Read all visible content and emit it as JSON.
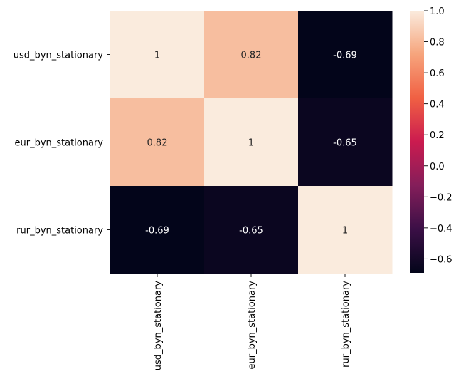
{
  "chart_data": {
    "type": "heatmap",
    "title": "",
    "xlabel": "",
    "ylabel": "",
    "x_categories": [
      "usd_byn_stationary",
      "eur_byn_stationary",
      "rur_byn_stationary"
    ],
    "y_categories": [
      "usd_byn_stationary",
      "eur_byn_stationary",
      "rur_byn_stationary"
    ],
    "values": [
      [
        1,
        0.82,
        -0.69
      ],
      [
        0.82,
        1,
        -0.65
      ],
      [
        -0.69,
        -0.65,
        1
      ]
    ],
    "cell_labels": [
      [
        "1",
        "0.82",
        "-0.69"
      ],
      [
        "0.82",
        "1",
        "-0.65"
      ],
      [
        "-0.69",
        "-0.65",
        "1"
      ]
    ],
    "colorbar": {
      "vmin": -0.69,
      "vmax": 1.0,
      "ticks": [
        1.0,
        0.8,
        0.6,
        0.4,
        0.2,
        0.0,
        -0.2,
        -0.4,
        -0.6
      ],
      "tick_labels": [
        "1.0",
        "0.8",
        "0.6",
        "0.4",
        "0.2",
        "0.0",
        "−0.2",
        "−0.4",
        "−0.6"
      ],
      "colormap": "rocket",
      "colormap_stops": [
        "#03051a",
        "#3b0f46",
        "#841e5a",
        "#cb1b4f",
        "#f06043",
        "#f6a47c",
        "#faebdd"
      ]
    },
    "colors": {
      "annotation_light": "#ffffff",
      "annotation_dark": "#262626",
      "axis": "#000000"
    }
  }
}
